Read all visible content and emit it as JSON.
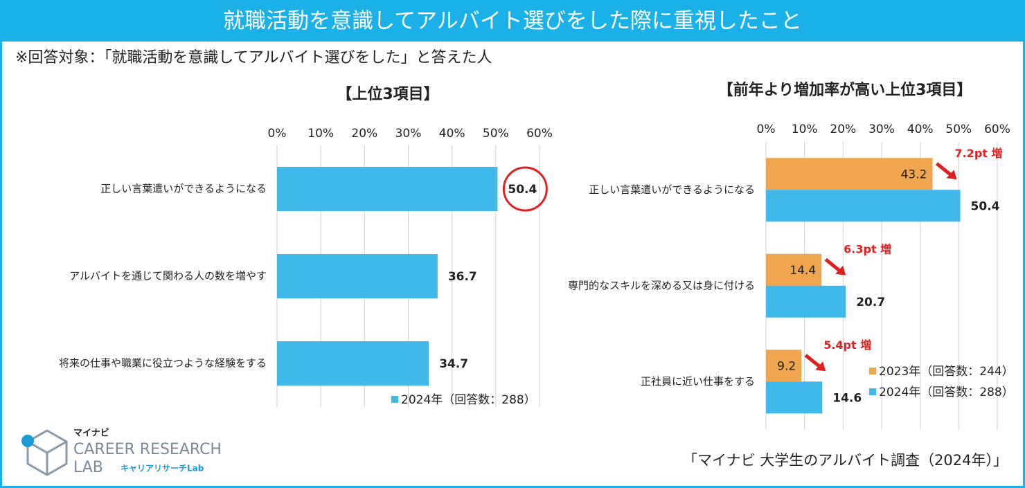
{
  "header": {
    "title": "就職活動を意識してアルバイト選びをした際に重視したこと",
    "note": "※回答対象：「就職活動を意識してアルバイト選びをした」と答えた人"
  },
  "chart_data": [
    {
      "type": "hbar",
      "title": "【上位3項目】",
      "categories": [
        "正しい言葉遣いができるようになる",
        "アルバイトを通じて関わる人の数を増やす",
        "将来の仕事や職業に役立つような経験をする"
      ],
      "series": [
        {
          "name": "2024年（回答数：288）",
          "color": "#41b8ea",
          "values": [
            50.4,
            36.7,
            34.7
          ]
        }
      ],
      "xlim": [
        0,
        60
      ],
      "xticks": [
        {
          "value": 0,
          "label": "0%"
        },
        {
          "value": 10,
          "label": "10%"
        },
        {
          "value": 20,
          "label": "20%"
        },
        {
          "value": 30,
          "label": "30%"
        },
        {
          "value": 40,
          "label": "40%"
        },
        {
          "value": 50,
          "label": "50%"
        },
        {
          "value": 60,
          "label": "60%"
        }
      ],
      "grid": true
    },
    {
      "type": "hbar",
      "title": "【前年より増加率が高い上位3項目】",
      "categories": [
        "正しい言葉遣いができるようになる",
        "専門的なスキルを深める又は身に付ける",
        "正社員に近い仕事をする"
      ],
      "series": [
        {
          "name": "2023年（回答数：244）",
          "color": "#f0a54f",
          "values": [
            43.2,
            14.4,
            9.2
          ]
        },
        {
          "name": "2024年（回答数：288）",
          "color": "#41b8ea",
          "values": [
            50.4,
            20.7,
            14.6
          ]
        }
      ],
      "annotations": [
        "7.2pt 増",
        "6.3pt 増",
        "5.4pt 増"
      ],
      "xlim": [
        0,
        60
      ],
      "xticks": [
        {
          "value": 0,
          "label": "0%"
        },
        {
          "value": 10,
          "label": "10%"
        },
        {
          "value": 20,
          "label": "20%"
        },
        {
          "value": 30,
          "label": "30%"
        },
        {
          "value": 40,
          "label": "40%"
        },
        {
          "value": 50,
          "label": "50%"
        },
        {
          "value": 60,
          "label": "60%"
        }
      ],
      "grid": true
    }
  ],
  "logo": {
    "brand": "マイナビ",
    "line1": "CAREER RESEARCH",
    "line2": "LAB",
    "sub": "キャリアリサーチLab"
  },
  "source": "「マイナビ 大学生のアルバイト調査（2024年）」"
}
